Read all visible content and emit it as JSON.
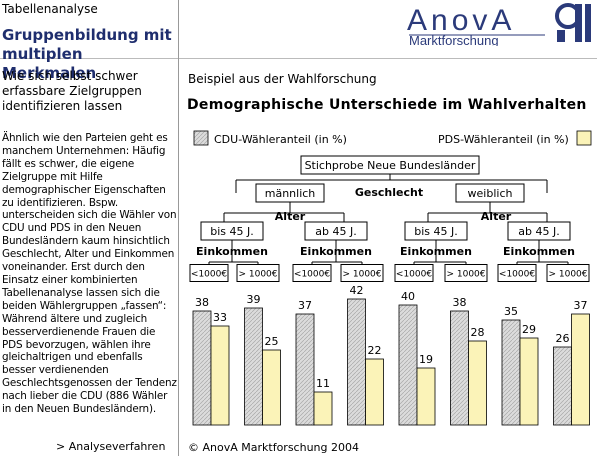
{
  "header": {
    "top_label": "Tabellenanalyse",
    "section_title": "Gruppenbildung mit multiplen Merkmalen",
    "subtitle": "Wie sich selbst schwer erfassbare Zielgruppen identifizieren lassen",
    "logo_text": "AnovA",
    "logo_sub": "Marktforschung"
  },
  "sidebar": {
    "body_text": "Ähnlich wie den Parteien geht es manchem Unternehmen: Häufig fällt es schwer, die eigene Zielgruppe mit Hilfe demographischer Eigenschaften zu identifizieren. Bspw. unterscheiden sich die Wähler von CDU und PDS in den Neuen Bundesländern kaum hinsichtlich Geschlecht, Alter und Einkommen voneinander. Erst durch den Einsatz einer kombinierten Tabellenanalyse lassen sich die beiden Wählergruppen „fassen“: Während ältere und zugleich besserverdienende Frauen die PDS bevorzugen, wählen ihre gleichaltrigen und ebenfalls besser verdienenden Geschlechtsgenossen der Tendenz nach lieber die CDU (886 Wähler in den Neuen Bundesländern).",
    "bottom_link": "> Analyseverfahren"
  },
  "main": {
    "example_label": "Beispiel aus der Wahlforschung",
    "chart_title": "Demographische Unterschiede im Wahlverhalten",
    "footer": "© AnovA Marktforschung 2004"
  },
  "tree": {
    "root": "Stichprobe Neue Bundesländer",
    "level1_label": "Geschlecht",
    "male": "männlich",
    "female": "weiblich",
    "level2_label": "Alter",
    "young": "bis 45 J.",
    "old": "ab 45 J.",
    "level3_label": "Einkommen",
    "low": "<1000€",
    "high": "> 1000€"
  },
  "colors": {
    "cdu": "#d8d8d8",
    "pds": "#fbf3b8",
    "title": "#1f2e6e",
    "logo": "#2b3a7a"
  },
  "chart_data": {
    "type": "bar",
    "categories": [
      "männlich · bis 45 J. · <1000€",
      "männlich · bis 45 J. · > 1000€",
      "männlich · ab 45 J. · <1000€",
      "männlich · ab 45 J. · > 1000€",
      "weiblich · bis 45 J. · <1000€",
      "weiblich · bis 45 J. · > 1000€",
      "weiblich · ab 45 J. · <1000€",
      "weiblich · ab 45 J. · > 1000€"
    ],
    "series": [
      {
        "name": "CDU-Wähleranteil (in %)",
        "values": [
          38,
          39,
          37,
          42,
          40,
          38,
          35,
          26
        ]
      },
      {
        "name": "PDS-Wähleranteil (in %)",
        "values": [
          33,
          25,
          11,
          22,
          19,
          28,
          29,
          37
        ]
      }
    ],
    "ylim": [
      0,
      45
    ],
    "grid": false,
    "legend": "top"
  }
}
